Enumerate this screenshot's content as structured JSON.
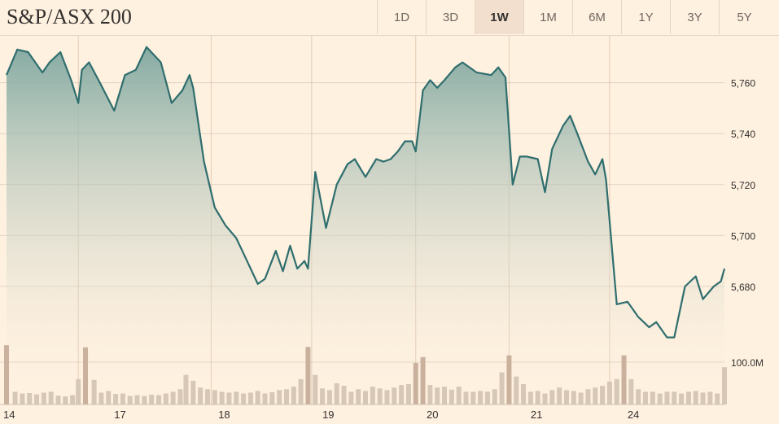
{
  "header": {
    "title": "S&P/ASX 200",
    "tabs": [
      {
        "label": "1D",
        "active": false
      },
      {
        "label": "3D",
        "active": false
      },
      {
        "label": "1W",
        "active": true
      },
      {
        "label": "1M",
        "active": false
      },
      {
        "label": "6M",
        "active": false
      },
      {
        "label": "1Y",
        "active": false
      },
      {
        "label": "3Y",
        "active": false
      },
      {
        "label": "5Y",
        "active": false
      }
    ]
  },
  "colors": {
    "background": "#fff1e0",
    "line": "#2f6e6e",
    "area_top": "#86aba3",
    "grid": "#e0d3c3",
    "volume": "#d6c7b6",
    "volume_spike": "#c9b19e",
    "separator": "#c9a88a"
  },
  "chart_data": [
    {
      "type": "area",
      "title": "S&P/ASX 200",
      "xlabel": "",
      "ylabel": "",
      "ylim": [
        5650,
        5775
      ],
      "y_ticks": [
        5680,
        5700,
        5720,
        5740,
        5760
      ],
      "y_tick_labels": [
        "5,680",
        "5,700",
        "5,720",
        "5,740",
        "5,760"
      ],
      "x_tick_labels": [
        "14",
        "17",
        "18",
        "19",
        "20",
        "21",
        "24"
      ],
      "grid": true,
      "series": [
        {
          "values": [
            [
              0,
              5763
            ],
            [
              0.15,
              5773
            ],
            [
              0.3,
              5772
            ],
            [
              0.5,
              5764
            ],
            [
              0.6,
              5768
            ],
            [
              0.75,
              5772
            ],
            [
              0.9,
              5761
            ],
            [
              1.0,
              5752
            ],
            [
              1.05,
              5765
            ],
            [
              1.15,
              5768
            ],
            [
              1.3,
              5760
            ],
            [
              1.5,
              5749
            ],
            [
              1.65,
              5763
            ],
            [
              1.8,
              5765
            ],
            [
              1.95,
              5774
            ],
            [
              2.15,
              5768
            ],
            [
              2.3,
              5752
            ],
            [
              2.45,
              5757
            ],
            [
              2.55,
              5763
            ],
            [
              2.6,
              5758
            ],
            [
              2.75,
              5729
            ],
            [
              2.9,
              5711
            ],
            [
              3.05,
              5704
            ],
            [
              3.2,
              5699
            ],
            [
              3.3,
              5693
            ],
            [
              3.5,
              5681
            ],
            [
              3.6,
              5683
            ],
            [
              3.75,
              5694
            ],
            [
              3.85,
              5686
            ],
            [
              3.95,
              5696
            ],
            [
              4.05,
              5687
            ],
            [
              4.15,
              5690
            ],
            [
              4.2,
              5687
            ],
            [
              4.3,
              5725
            ],
            [
              4.45,
              5703
            ],
            [
              4.6,
              5720
            ],
            [
              4.75,
              5728
            ],
            [
              4.85,
              5730
            ],
            [
              5.0,
              5723
            ],
            [
              5.15,
              5730
            ],
            [
              5.25,
              5729
            ],
            [
              5.35,
              5730
            ],
            [
              5.45,
              5733
            ],
            [
              5.55,
              5737
            ],
            [
              5.65,
              5737
            ],
            [
              5.7,
              5733
            ],
            [
              5.8,
              5757
            ],
            [
              5.9,
              5761
            ],
            [
              6.0,
              5758
            ],
            [
              6.1,
              5761
            ],
            [
              6.25,
              5766
            ],
            [
              6.35,
              5768
            ],
            [
              6.55,
              5764
            ],
            [
              6.75,
              5763
            ],
            [
              6.85,
              5766
            ],
            [
              6.95,
              5762
            ],
            [
              7.05,
              5720
            ],
            [
              7.15,
              5731
            ],
            [
              7.25,
              5731
            ],
            [
              7.4,
              5730
            ],
            [
              7.5,
              5717
            ],
            [
              7.6,
              5734
            ],
            [
              7.75,
              5743
            ],
            [
              7.85,
              5747
            ],
            [
              7.95,
              5740
            ],
            [
              8.1,
              5729
            ],
            [
              8.2,
              5724
            ],
            [
              8.3,
              5730
            ],
            [
              8.35,
              5722
            ],
            [
              8.5,
              5673
            ],
            [
              8.65,
              5674
            ],
            [
              8.8,
              5668
            ],
            [
              8.95,
              5664
            ],
            [
              9.05,
              5666
            ],
            [
              9.2,
              5660
            ],
            [
              9.3,
              5660
            ],
            [
              9.45,
              5680
            ],
            [
              9.6,
              5684
            ],
            [
              9.7,
              5675
            ],
            [
              9.85,
              5680
            ],
            [
              9.95,
              5682
            ],
            [
              10.0,
              5687
            ]
          ]
        }
      ]
    },
    {
      "type": "bar",
      "title": "",
      "ylabel": "",
      "y_ticks": [
        100
      ],
      "y_tick_labels": [
        "100.0M"
      ],
      "ylim": [
        0,
        140
      ],
      "units": "M",
      "series": [
        {
          "values": [
            [
              0,
              140
            ],
            [
              0.12,
              30
            ],
            [
              0.22,
              26
            ],
            [
              0.32,
              27
            ],
            [
              0.42,
              24
            ],
            [
              0.52,
              28
            ],
            [
              0.62,
              30
            ],
            [
              0.72,
              21
            ],
            [
              0.82,
              19
            ],
            [
              0.92,
              22
            ],
            [
              1.0,
              60
            ],
            [
              1.1,
              135
            ],
            [
              1.22,
              58
            ],
            [
              1.32,
              28
            ],
            [
              1.42,
              32
            ],
            [
              1.52,
              25
            ],
            [
              1.62,
              26
            ],
            [
              1.72,
              20
            ],
            [
              1.82,
              22
            ],
            [
              1.92,
              20
            ],
            [
              2.02,
              23
            ],
            [
              2.12,
              22
            ],
            [
              2.22,
              26
            ],
            [
              2.32,
              30
            ],
            [
              2.42,
              36
            ],
            [
              2.5,
              70
            ],
            [
              2.6,
              56
            ],
            [
              2.7,
              40
            ],
            [
              2.8,
              36
            ],
            [
              2.9,
              34
            ],
            [
              3.0,
              30
            ],
            [
              3.1,
              28
            ],
            [
              3.2,
              30
            ],
            [
              3.3,
              26
            ],
            [
              3.4,
              28
            ],
            [
              3.5,
              32
            ],
            [
              3.6,
              26
            ],
            [
              3.7,
              29
            ],
            [
              3.8,
              34
            ],
            [
              3.9,
              36
            ],
            [
              4.0,
              42
            ],
            [
              4.1,
              60
            ],
            [
              4.2,
              136
            ],
            [
              4.3,
              70
            ],
            [
              4.4,
              38
            ],
            [
              4.5,
              34
            ],
            [
              4.6,
              50
            ],
            [
              4.7,
              44
            ],
            [
              4.8,
              30
            ],
            [
              4.9,
              36
            ],
            [
              5.0,
              32
            ],
            [
              5.1,
              42
            ],
            [
              5.2,
              38
            ],
            [
              5.3,
              34
            ],
            [
              5.4,
              40
            ],
            [
              5.5,
              46
            ],
            [
              5.6,
              48
            ],
            [
              5.7,
              98
            ],
            [
              5.8,
              112
            ],
            [
              5.9,
              46
            ],
            [
              6.0,
              40
            ],
            [
              6.1,
              42
            ],
            [
              6.2,
              35
            ],
            [
              6.3,
              42
            ],
            [
              6.4,
              30
            ],
            [
              6.5,
              30
            ],
            [
              6.6,
              32
            ],
            [
              6.7,
              30
            ],
            [
              6.8,
              36
            ],
            [
              6.9,
              76
            ],
            [
              7.0,
              116
            ],
            [
              7.1,
              66
            ],
            [
              7.2,
              48
            ],
            [
              7.3,
              30
            ],
            [
              7.4,
              32
            ],
            [
              7.5,
              26
            ],
            [
              7.6,
              34
            ],
            [
              7.7,
              40
            ],
            [
              7.8,
              34
            ],
            [
              7.9,
              32
            ],
            [
              8.0,
              28
            ],
            [
              8.1,
              36
            ],
            [
              8.2,
              40
            ],
            [
              8.3,
              44
            ],
            [
              8.4,
              54
            ],
            [
              8.5,
              60
            ],
            [
              8.6,
              116
            ],
            [
              8.7,
              60
            ],
            [
              8.8,
              36
            ],
            [
              8.9,
              30
            ],
            [
              9.0,
              30
            ],
            [
              9.1,
              26
            ],
            [
              9.2,
              30
            ],
            [
              9.3,
              30
            ],
            [
              9.4,
              26
            ],
            [
              9.5,
              30
            ],
            [
              9.6,
              32
            ],
            [
              9.7,
              28
            ],
            [
              9.8,
              30
            ],
            [
              9.9,
              26
            ],
            [
              10.0,
              88
            ]
          ]
        }
      ]
    }
  ]
}
